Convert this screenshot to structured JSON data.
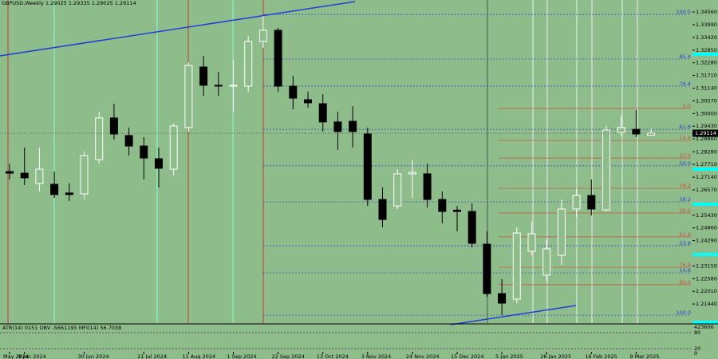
{
  "chart_data": {
    "type": "candlestick",
    "title": "GBPUSD,Weekly  1.29025 1.29335 1.29025 1.29114",
    "categories": [
      "May 2024",
      "9 Jun 2024",
      null,
      null,
      null,
      "30 Jun 2024",
      null,
      null,
      null,
      "21 Jul 2024",
      null,
      null,
      "11 Aug 2024",
      null,
      null,
      "1 Sep 2024",
      null,
      null,
      "22 Sep 2024",
      null,
      null,
      "13 Oct 2024",
      null,
      null,
      "3 Nov 2024",
      null,
      null,
      "24 Nov 2024",
      null,
      null,
      "15 Dec 2024",
      null,
      null,
      "5 Jan 2025",
      null,
      null,
      "26 Jan 2025",
      null,
      null,
      "16 Feb 2025",
      null,
      null,
      "9 Mar 2025",
      null
    ],
    "open": [
      1.2739,
      1.2732,
      1.2686,
      1.2682,
      1.2643,
      1.2639,
      1.2793,
      1.298,
      1.2901,
      1.2854,
      1.2797,
      1.275,
      1.2937,
      1.3209,
      1.3127,
      1.3123,
      1.3123,
      1.3324,
      1.3374,
      1.3123,
      1.3062,
      1.3044,
      1.2962,
      1.2965,
      1.2908,
      1.2614,
      1.2585,
      1.2729,
      1.2729,
      1.2614,
      1.2566,
      1.256,
      1.2413,
      1.2191,
      1.2166,
      1.2381,
      1.2274,
      1.2363,
      1.2571,
      1.2632,
      1.2567,
      1.2915,
      1.2929,
      1.29025
    ],
    "high": [
      1.2775,
      1.2847,
      1.2847,
      1.2739,
      1.2686,
      1.2829,
      1.3008,
      1.3044,
      1.2937,
      1.2894,
      1.2847,
      1.2955,
      1.323,
      1.3259,
      1.3187,
      1.3241,
      1.3349,
      1.3438,
      1.3385,
      1.317,
      1.3098,
      1.3087,
      1.3008,
      1.3033,
      1.2937,
      1.2668,
      1.275,
      1.2793,
      1.2775,
      1.265,
      1.2585,
      1.2596,
      1.2471,
      1.2256,
      1.2489,
      1.2514,
      1.2435,
      1.2614,
      1.2664,
      1.2704,
      1.2944,
      1.299,
      1.3015,
      1.29335
    ],
    "low": [
      1.2704,
      1.2679,
      1.265,
      1.2621,
      1.2607,
      1.2614,
      1.2775,
      1.2883,
      1.2811,
      1.2704,
      1.2668,
      1.2722,
      1.2919,
      1.308,
      1.308,
      1.3008,
      1.3098,
      1.3295,
      1.3098,
      1.3019,
      1.3026,
      1.2919,
      1.2836,
      1.2847,
      1.2585,
      1.2489,
      1.2571,
      1.2621,
      1.2578,
      1.2506,
      1.2471,
      1.2399,
      1.2177,
      1.2094,
      1.2148,
      1.2363,
      1.2249,
      1.232,
      1.2535,
      1.2542,
      1.256,
      1.2901,
      1.2894,
      1.29025
    ],
    "close": [
      1.2732,
      1.2711,
      1.275,
      1.2636,
      1.2636,
      1.2811,
      1.298,
      1.2908,
      1.2854,
      1.28,
      1.2754,
      1.2944,
      1.3216,
      1.3127,
      1.3123,
      1.3127,
      1.3324,
      1.3374,
      1.3123,
      1.3069,
      1.3048,
      1.2962,
      1.2919,
      1.2919,
      1.2614,
      1.2524,
      1.2729,
      1.2736,
      1.2614,
      1.256,
      1.256,
      1.2417,
      1.2191,
      1.2148,
      1.2463,
      1.246,
      1.2392,
      1.2571,
      1.2632,
      1.2571,
      1.2926,
      1.2937,
      1.2908,
      1.29114
    ],
    "colors": {
      "up": "#ffffff",
      "down": "#000000",
      "background": "#8fbc8b"
    },
    "ylim": [
      1.2062,
      1.351
    ],
    "yticks": [
      {
        "value": 1.3456,
        "label": "1.34560"
      },
      {
        "value": 1.3399,
        "label": "1.33990"
      },
      {
        "value": 1.3342,
        "label": "1.33420"
      },
      {
        "value": 1.3285,
        "label": "1.32850"
      },
      {
        "value": 1.3228,
        "label": "1.32280"
      },
      {
        "value": 1.3171,
        "label": "1.31710"
      },
      {
        "value": 1.3114,
        "label": "1.31140"
      },
      {
        "value": 1.3057,
        "label": "1.30570"
      },
      {
        "value": 1.3,
        "label": "1.30000"
      },
      {
        "value": 1.2943,
        "label": "1.29430"
      },
      {
        "value": 1.2886,
        "label": "1.28860"
      },
      {
        "value": 1.2828,
        "label": "1.28280"
      },
      {
        "value": 1.2771,
        "label": "1.27710"
      },
      {
        "value": 1.2714,
        "label": "1.27140"
      },
      {
        "value": 1.2657,
        "label": "1.26570"
      },
      {
        "value": 1.2543,
        "label": "1.25430"
      },
      {
        "value": 1.2486,
        "label": "1.24860"
      },
      {
        "value": 1.2429,
        "label": "1.24290"
      },
      {
        "value": 1.2315,
        "label": "1.23150"
      },
      {
        "value": 1.2258,
        "label": "1.22580"
      },
      {
        "value": 1.2201,
        "label": "1.22010"
      },
      {
        "value": 1.2144,
        "label": "1.21440"
      }
    ],
    "fib_levels": [
      {
        "price": 1.3445,
        "label": "100.0",
        "color": "#2a3fd0"
      },
      {
        "price": 1.3245,
        "label": "85.4",
        "color": "#2a3fd0"
      },
      {
        "price": 1.3123,
        "label": "76.4",
        "color": "#2a3fd0"
      },
      {
        "price": 1.2929,
        "label": "61.8",
        "color": "#2a3fd0"
      },
      {
        "price": 1.2765,
        "label": "50.0",
        "color": "#2a3fd0"
      },
      {
        "price": 1.2603,
        "label": "38.2",
        "color": "#2a3fd0"
      },
      {
        "price": 1.2406,
        "label": "23.6",
        "color": "#2a3fd0"
      },
      {
        "price": 1.2284,
        "label": "14.6",
        "color": "#2a3fd0"
      },
      {
        "price": 1.3023,
        "label": "0.0",
        "color": "#c8553a"
      },
      {
        "price": 1.2879,
        "label": "14.6",
        "color": "#c8553a"
      },
      {
        "price": 1.28,
        "label": "23.6",
        "color": "#c8553a"
      },
      {
        "price": 1.2664,
        "label": "38.2",
        "color": "#c8553a"
      },
      {
        "price": 1.2553,
        "label": "50.0",
        "color": "#c8553a"
      },
      {
        "price": 1.2446,
        "label": "61.8",
        "color": "#c8553a"
      },
      {
        "price": 1.2309,
        "label": "76.4",
        "color": "#c8553a"
      },
      {
        "price": 1.2231,
        "label": "85.4",
        "color": "#c8553a"
      },
      {
        "price": 1.2094,
        "label": "100.0",
        "color": "#2a3fd0"
      }
    ],
    "price_label": "1.29114",
    "indicator": {
      "text": "ATR(14) 0151 OBV -5661195 MFI(14) 56.7038",
      "scale_labels": [
        "423606",
        "80",
        "20",
        "0"
      ]
    }
  }
}
